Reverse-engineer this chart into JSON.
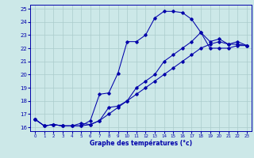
{
  "xlabel": "Graphe des températures (°c)",
  "bg_color": "#cce8e8",
  "grid_color": "#aacccc",
  "line_color": "#0000aa",
  "xlim": [
    -0.5,
    23.5
  ],
  "ylim": [
    15.7,
    25.3
  ],
  "yticks": [
    16,
    17,
    18,
    19,
    20,
    21,
    22,
    23,
    24,
    25
  ],
  "xticks": [
    0,
    1,
    2,
    3,
    4,
    5,
    6,
    7,
    8,
    9,
    10,
    11,
    12,
    13,
    14,
    15,
    16,
    17,
    18,
    19,
    20,
    21,
    22,
    23
  ],
  "curve1_x": [
    0,
    1,
    2,
    3,
    4,
    5,
    6,
    7,
    8,
    9,
    10,
    11,
    12,
    13,
    14,
    15,
    16,
    17,
    18,
    19,
    20,
    21,
    22,
    23
  ],
  "curve1_y": [
    16.6,
    16.1,
    16.2,
    16.1,
    16.1,
    16.1,
    16.5,
    18.5,
    18.6,
    20.1,
    22.5,
    22.5,
    23.0,
    24.3,
    24.8,
    24.8,
    24.7,
    24.2,
    23.2,
    22.5,
    22.7,
    22.3,
    22.5,
    22.2
  ],
  "curve2_x": [
    0,
    1,
    2,
    3,
    4,
    5,
    6,
    7,
    8,
    9,
    10,
    11,
    12,
    13,
    14,
    15,
    16,
    17,
    18,
    19,
    20,
    21,
    22,
    23
  ],
  "curve2_y": [
    16.6,
    16.1,
    16.2,
    16.1,
    16.1,
    16.3,
    16.2,
    16.5,
    17.5,
    17.6,
    18.0,
    19.0,
    19.5,
    20.0,
    21.0,
    21.5,
    22.0,
    22.5,
    23.2,
    22.0,
    22.0,
    22.0,
    22.2,
    22.2
  ],
  "curve3_x": [
    0,
    1,
    2,
    3,
    4,
    5,
    6,
    7,
    8,
    9,
    10,
    11,
    12,
    13,
    14,
    15,
    16,
    17,
    18,
    19,
    20,
    21,
    22,
    23
  ],
  "curve3_y": [
    16.6,
    16.1,
    16.2,
    16.1,
    16.1,
    16.1,
    16.2,
    16.5,
    17.0,
    17.5,
    18.0,
    18.5,
    19.0,
    19.5,
    20.0,
    20.5,
    21.0,
    21.5,
    22.0,
    22.3,
    22.5,
    22.3,
    22.3,
    22.2
  ]
}
